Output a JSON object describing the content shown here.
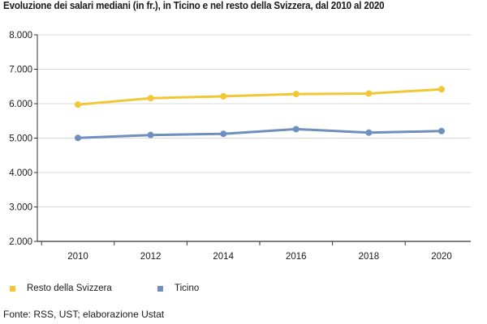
{
  "title": "Evoluzione dei salari mediani (in fr.), in Ticino e nel resto della Svizzera, dal 2010 al 2020",
  "source": "Fonte: RSS, UST; elaborazione Ustat",
  "chart_data": {
    "type": "line",
    "x": [
      2010,
      2012,
      2014,
      2016,
      2018,
      2020
    ],
    "x_tick_labels": [
      "2010",
      "2012",
      "2014",
      "2016",
      "2018",
      "2020"
    ],
    "y_tick_values": [
      2000,
      3000,
      4000,
      5000,
      6000,
      7000,
      8000
    ],
    "y_tick_labels": [
      "2.000",
      "3.000",
      "4.000",
      "5.000",
      "6.000",
      "7.000",
      "8.000"
    ],
    "ylim": [
      2000,
      8000
    ],
    "grid": true,
    "legend_position": "bottom",
    "series": [
      {
        "name": "Resto della Svizzera",
        "color": "#f2c736",
        "values": [
          5975,
          6160,
          6215,
          6280,
          6295,
          6420
        ]
      },
      {
        "name": "Ticino",
        "color": "#6f8fbc",
        "values": [
          5005,
          5090,
          5125,
          5260,
          5160,
          5205
        ]
      }
    ]
  }
}
